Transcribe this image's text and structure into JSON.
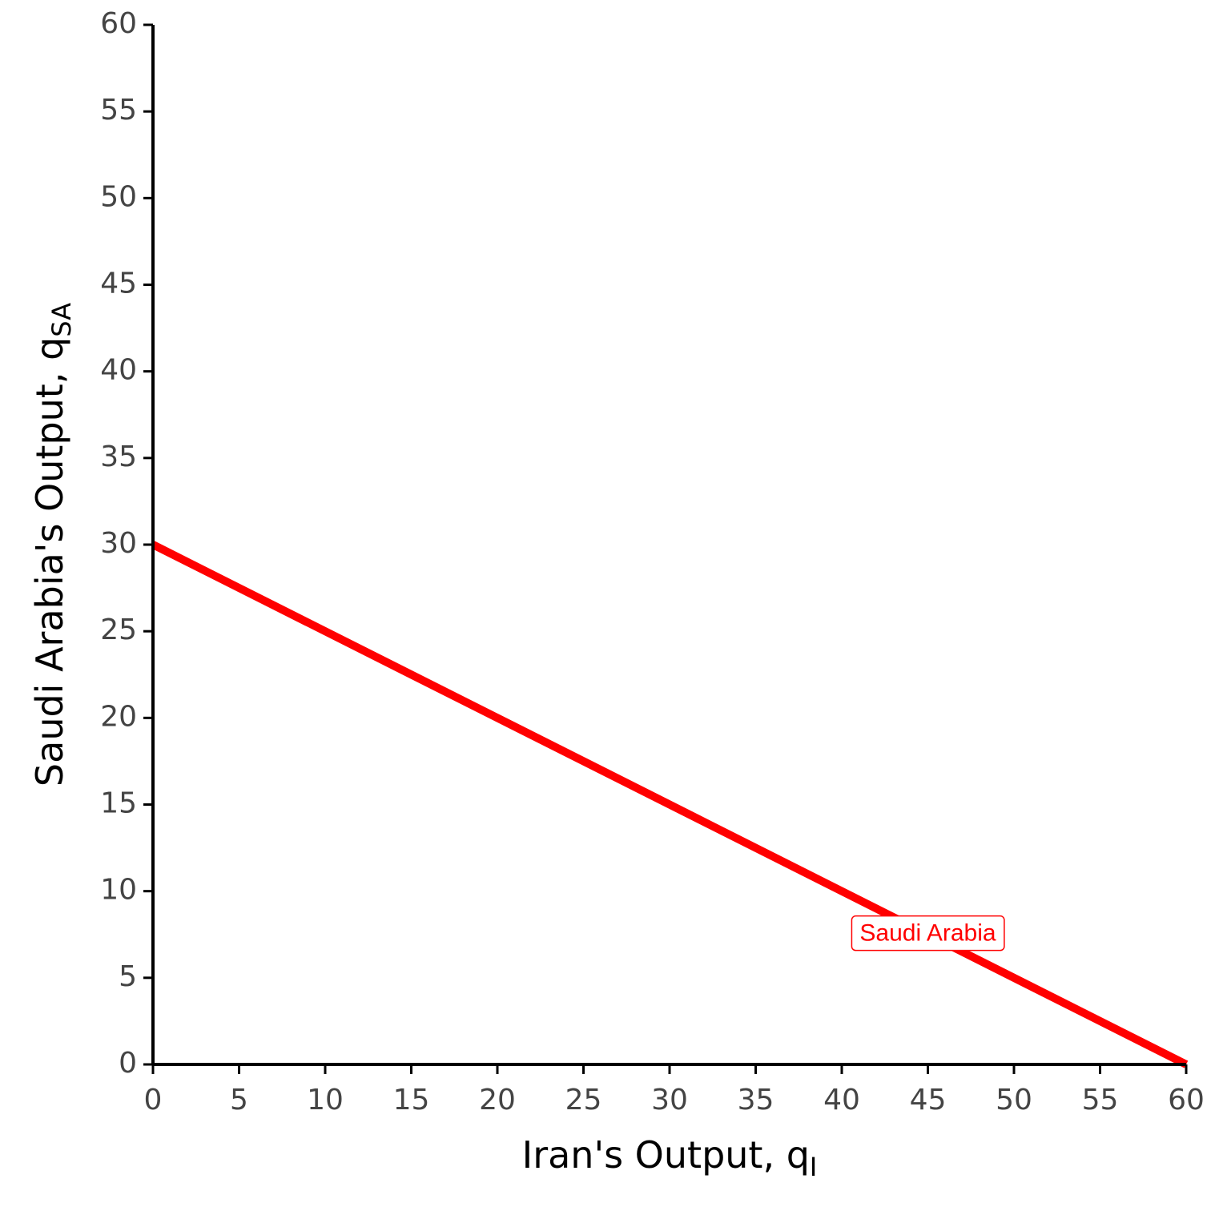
{
  "chart_data": {
    "type": "line",
    "xlabel": {
      "text": "Iran's Output, q",
      "subscript": "I"
    },
    "ylabel": {
      "text": "Saudi Arabia's Output, q",
      "subscript": "SA"
    },
    "x": [
      0,
      60
    ],
    "series": [
      {
        "name": "Saudi Arabia",
        "color": "#ff0000",
        "values": [
          30,
          0
        ]
      }
    ],
    "xlim": [
      0,
      60
    ],
    "ylim": [
      0,
      60
    ],
    "xticks": [
      0,
      5,
      10,
      15,
      20,
      25,
      30,
      35,
      40,
      45,
      50,
      55,
      60
    ],
    "yticks": [
      0,
      5,
      10,
      15,
      20,
      25,
      30,
      35,
      40,
      45,
      50,
      55,
      60
    ],
    "grid": false,
    "annotations": [
      {
        "text": "Saudi Arabia",
        "x": 45,
        "y": 7.5,
        "color": "#ff0000"
      }
    ]
  }
}
